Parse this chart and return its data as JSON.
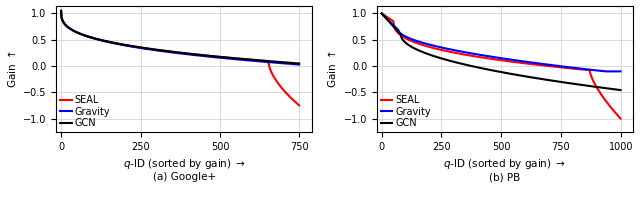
{
  "plot_a": {
    "title": "(a) Google+",
    "n_points": 750,
    "xlim": [
      -15,
      790
    ],
    "xticks": [
      0,
      250,
      500,
      750
    ],
    "ylim": [
      -1.25,
      1.15
    ],
    "yticks": [
      -1.0,
      -0.5,
      0.0,
      0.5,
      1.0
    ],
    "xlabel": "$q$-ID (sorted by gain) $\\rightarrow$",
    "ylabel": "Gain $\\uparrow$"
  },
  "plot_b": {
    "title": "(b) PB",
    "n_points": 1000,
    "xlim": [
      -20,
      1050
    ],
    "xticks": [
      0,
      250,
      500,
      750,
      1000
    ],
    "ylim": [
      -1.25,
      1.15
    ],
    "yticks": [
      -1.0,
      -0.5,
      0.0,
      0.5,
      1.0
    ],
    "xlabel": "$q$-ID (sorted by gain) $\\rightarrow$",
    "ylabel": "Gain $\\uparrow$"
  },
  "colors": {
    "SEAL": "#ff0000",
    "Gravity": "#0000ff",
    "GCN": "#000000"
  },
  "linewidth": 1.5,
  "background": "#ffffff",
  "grid_color": "#cccccc"
}
